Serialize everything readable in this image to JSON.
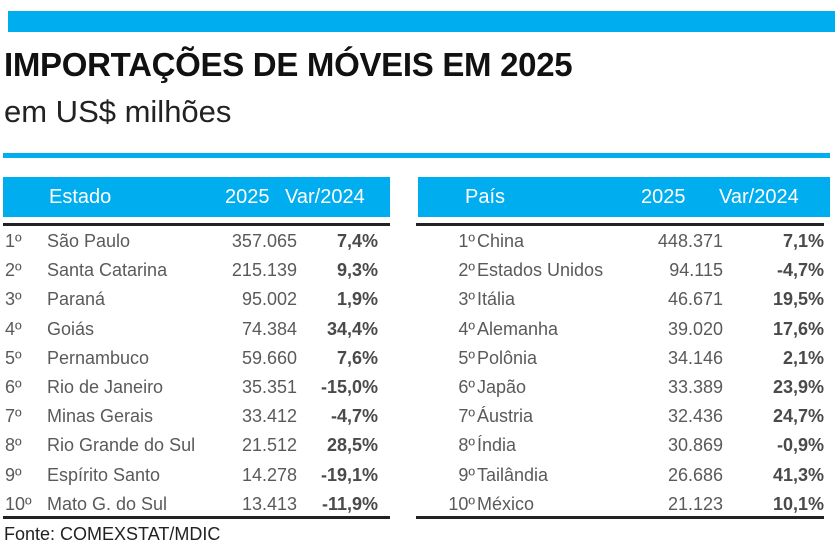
{
  "header": {
    "title": "IMPORTAÇÕES DE MÓVEIS EM 2025",
    "subtitle": "em US$ milhões"
  },
  "colors": {
    "accent": "#00AEEF",
    "header_text": "#FFFFFF",
    "rule": "#222222"
  },
  "states_table": {
    "columns": [
      "Estado",
      "2025",
      "Var/2024"
    ],
    "rows": [
      {
        "rank": "1º",
        "name": "São Paulo",
        "value": "357.065",
        "var": "7,4%"
      },
      {
        "rank": "2º",
        "name": "Santa Catarina",
        "value": "215.139",
        "var": "9,3%"
      },
      {
        "rank": "3º",
        "name": "Paraná",
        "value": "95.002",
        "var": "1,9%"
      },
      {
        "rank": "4º",
        "name": "Goiás",
        "value": "74.384",
        "var": "34,4%"
      },
      {
        "rank": "5º",
        "name": "Pernambuco",
        "value": "59.660",
        "var": "7,6%"
      },
      {
        "rank": "6º",
        "name": "Rio de Janeiro",
        "value": "35.351",
        "var": "-15,0%"
      },
      {
        "rank": "7º",
        "name": "Minas Gerais",
        "value": "33.412",
        "var": "-4,7%"
      },
      {
        "rank": "8º",
        "name": "Rio Grande do Sul",
        "value": "21.512",
        "var": "28,5%"
      },
      {
        "rank": "9º",
        "name": "Espírito Santo",
        "value": "14.278",
        "var": "-19,1%"
      },
      {
        "rank": "10º",
        "name": "Mato G. do Sul",
        "value": "13.413",
        "var": "-11,9%"
      }
    ]
  },
  "countries_table": {
    "columns": [
      "País",
      "2025",
      "Var/2024"
    ],
    "rows": [
      {
        "rank": "1º",
        "name": "China",
        "value": "448.371",
        "var": "7,1%"
      },
      {
        "rank": "2º",
        "name": "Estados Unidos",
        "value": "94.115",
        "var": "-4,7%"
      },
      {
        "rank": "3º",
        "name": "Itália",
        "value": "46.671",
        "var": "19,5%"
      },
      {
        "rank": "4º",
        "name": "Alemanha",
        "value": "39.020",
        "var": "17,6%"
      },
      {
        "rank": "5º",
        "name": "Polônia",
        "value": "34.146",
        "var": "2,1%"
      },
      {
        "rank": "6º",
        "name": "Japão",
        "value": "33.389",
        "var": "23,9%"
      },
      {
        "rank": "7º",
        "name": "Áustria",
        "value": "32.436",
        "var": "24,7%"
      },
      {
        "rank": "8º",
        "name": "Índia",
        "value": "30.869",
        "var": "-0,9%"
      },
      {
        "rank": "9º",
        "name": "Tailândia",
        "value": "26.686",
        "var": "41,3%"
      },
      {
        "rank": "10º",
        "name": "México",
        "value": "21.123",
        "var": "10,1%"
      }
    ]
  },
  "footer": {
    "source": "Fonte: COMEXSTAT/MDIC"
  }
}
